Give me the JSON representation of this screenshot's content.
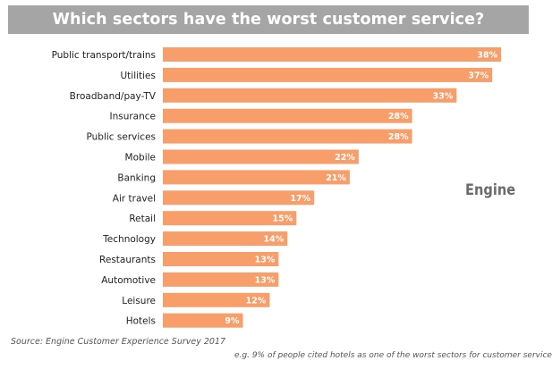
{
  "chart_data": {
    "type": "bar",
    "orientation": "horizontal",
    "title": "Which sectors have the worst customer service?",
    "categories": [
      "Public transport/trains",
      "Utilities",
      "Broadband/pay-TV",
      "Insurance",
      "Public services",
      "Mobile",
      "Banking",
      "Air travel",
      "Retail",
      "Technology",
      "Restaurants",
      "Automotive",
      "Leisure",
      "Hotels"
    ],
    "values": [
      38,
      37,
      33,
      28,
      28,
      22,
      21,
      17,
      15,
      14,
      13,
      13,
      12,
      9
    ],
    "value_labels": [
      "38%",
      "37%",
      "33%",
      "28%",
      "28%",
      "22%",
      "21%",
      "17%",
      "15%",
      "14%",
      "13%",
      "13%",
      "12%",
      "9%"
    ],
    "unit": "%",
    "xlim": [
      0,
      40
    ],
    "grid": false,
    "bar_color": "#f79e6a"
  },
  "logo_text": "Engine",
  "source": "Source: Engine Customer Experience Survey 2017",
  "footnote": "e.g. 9% of  people cited hotels as one of the worst sectors for customer service"
}
